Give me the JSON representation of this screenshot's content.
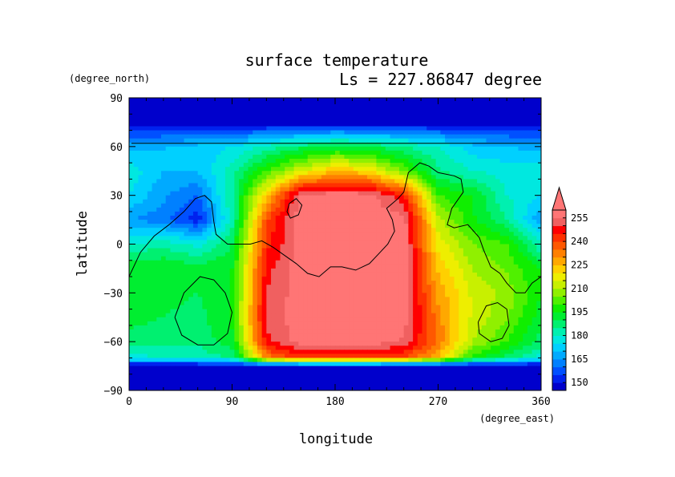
{
  "chart_data": {
    "type": "heatmap",
    "title": "surface temperature",
    "subtitle": "Ls = 227.86847 degree",
    "xlabel": "longitude",
    "ylabel": "latitude",
    "x_units": "(degree_east)",
    "y_units": "(degree_north)",
    "xlim": [
      0,
      360
    ],
    "ylim": [
      -90,
      90
    ],
    "x_ticks": [
      0,
      90,
      180,
      270,
      360
    ],
    "y_ticks": [
      90,
      60,
      30,
      0,
      -30,
      -60,
      -90
    ],
    "x_tick_labels": [
      "0",
      "90",
      "180",
      "270",
      "360"
    ],
    "y_tick_labels": [
      "90",
      "60",
      "30",
      "0",
      "−30",
      "−60",
      "−90"
    ],
    "colorbar": {
      "levels": [
        145,
        150,
        155,
        160,
        165,
        170,
        175,
        180,
        185,
        190,
        195,
        200,
        205,
        210,
        215,
        220,
        225,
        230,
        235,
        240,
        245,
        250,
        255,
        260
      ],
      "labels": [
        "150",
        "165",
        "180",
        "195",
        "210",
        "225",
        "240",
        "255"
      ],
      "label_values": [
        150,
        165,
        180,
        195,
        210,
        225,
        240,
        255
      ],
      "colors": [
        "#0000cc",
        "#0022ee",
        "#0050ff",
        "#0080ff",
        "#00aaff",
        "#00d0ff",
        "#00e8e0",
        "#00f0b0",
        "#00f070",
        "#00ee30",
        "#10ee00",
        "#50f000",
        "#90f000",
        "#c8f000",
        "#eeee00",
        "#ffd000",
        "#ffa800",
        "#ff8000",
        "#ff5800",
        "#ff3000",
        "#ff0000",
        "#f06060",
        "#ff7575"
      ],
      "extend_max_color": "#ff7575"
    },
    "field_grid": {
      "lon": [
        0,
        30,
        60,
        90,
        120,
        150,
        180,
        210,
        240,
        270,
        300,
        330,
        360
      ],
      "lat": [
        85,
        75,
        60,
        45,
        30,
        15,
        0,
        -15,
        -30,
        -45,
        -60,
        -70,
        -75,
        -85
      ],
      "values": [
        [
          146,
          146,
          146,
          146,
          146,
          146,
          146,
          146,
          146,
          146,
          146,
          146,
          146
        ],
        [
          146,
          146,
          146,
          146,
          146,
          146,
          146,
          146,
          146,
          146,
          146,
          146,
          146
        ],
        [
          168,
          170,
          172,
          175,
          182,
          188,
          192,
          190,
          185,
          180,
          172,
          170,
          168
        ],
        [
          178,
          170,
          170,
          183,
          200,
          214,
          225,
          220,
          204,
          186,
          180,
          178,
          178
        ],
        [
          175,
          166,
          160,
          185,
          222,
          258,
          258,
          258,
          245,
          200,
          195,
          180,
          175
        ],
        [
          165,
          162,
          152,
          182,
          240,
          258,
          258,
          258,
          258,
          212,
          196,
          185,
          165
        ],
        [
          180,
          183,
          178,
          190,
          243,
          258,
          258,
          258,
          258,
          218,
          205,
          200,
          180
        ],
        [
          195,
          195,
          192,
          195,
          248,
          258,
          258,
          258,
          258,
          224,
          210,
          204,
          195
        ],
        [
          195,
          192,
          190,
          195,
          250,
          258,
          258,
          258,
          258,
          228,
          214,
          208,
          195
        ],
        [
          192,
          190,
          188,
          196,
          252,
          258,
          258,
          258,
          258,
          232,
          214,
          206,
          192
        ],
        [
          188,
          186,
          186,
          194,
          248,
          258,
          258,
          258,
          254,
          234,
          210,
          200,
          188
        ],
        [
          178,
          180,
          182,
          185,
          232,
          242,
          243,
          243,
          240,
          225,
          198,
          188,
          178
        ],
        [
          146,
          146,
          146,
          146,
          146,
          146,
          146,
          146,
          146,
          146,
          146,
          146,
          146
        ],
        [
          146,
          146,
          146,
          146,
          146,
          146,
          146,
          146,
          146,
          146,
          146,
          146,
          146
        ]
      ]
    },
    "topography_contours": [
      [
        [
          0,
          -20
        ],
        [
          10,
          -5
        ],
        [
          22,
          5
        ],
        [
          35,
          12
        ],
        [
          48,
          20
        ],
        [
          58,
          28
        ],
        [
          66,
          30
        ],
        [
          72,
          26
        ],
        [
          74,
          14
        ],
        [
          76,
          6
        ],
        [
          86,
          0
        ],
        [
          96,
          0
        ],
        [
          106,
          0
        ],
        [
          116,
          2
        ],
        [
          126,
          -2
        ],
        [
          134,
          -6
        ],
        [
          146,
          -12
        ],
        [
          156,
          -18
        ],
        [
          166,
          -20
        ],
        [
          176,
          -14
        ],
        [
          186,
          -14
        ],
        [
          198,
          -16
        ],
        [
          210,
          -12
        ],
        [
          218,
          -6
        ],
        [
          226,
          0
        ],
        [
          232,
          8
        ],
        [
          230,
          15
        ],
        [
          225,
          22
        ],
        [
          235,
          28
        ],
        [
          240,
          32
        ],
        [
          244,
          44
        ],
        [
          254,
          50
        ],
        [
          262,
          48
        ],
        [
          270,
          44
        ],
        [
          284,
          42
        ],
        [
          290,
          40
        ],
        [
          292,
          32
        ],
        [
          282,
          22
        ],
        [
          278,
          12
        ],
        [
          284,
          10
        ],
        [
          296,
          12
        ],
        [
          306,
          4
        ],
        [
          310,
          -4
        ],
        [
          316,
          -14
        ],
        [
          324,
          -18
        ],
        [
          330,
          -24
        ],
        [
          338,
          -30
        ],
        [
          346,
          -30
        ],
        [
          352,
          -24
        ],
        [
          360,
          -20
        ]
      ],
      [
        [
          140,
          25
        ],
        [
          146,
          28
        ],
        [
          151,
          24
        ],
        [
          148,
          18
        ],
        [
          141,
          16
        ],
        [
          138,
          20
        ],
        [
          140,
          25
        ]
      ],
      [
        [
          40,
          -45
        ],
        [
          48,
          -30
        ],
        [
          62,
          -20
        ],
        [
          74,
          -22
        ],
        [
          84,
          -30
        ],
        [
          90,
          -42
        ],
        [
          86,
          -55
        ],
        [
          74,
          -62
        ],
        [
          60,
          -62
        ],
        [
          46,
          -56
        ],
        [
          40,
          -45
        ]
      ],
      [
        [
          305,
          -48
        ],
        [
          312,
          -38
        ],
        [
          322,
          -36
        ],
        [
          330,
          -40
        ],
        [
          332,
          -50
        ],
        [
          326,
          -58
        ],
        [
          316,
          -60
        ],
        [
          306,
          -55
        ],
        [
          305,
          -48
        ]
      ],
      [
        [
          2,
          62
        ],
        [
          360,
          62
        ]
      ]
    ]
  }
}
